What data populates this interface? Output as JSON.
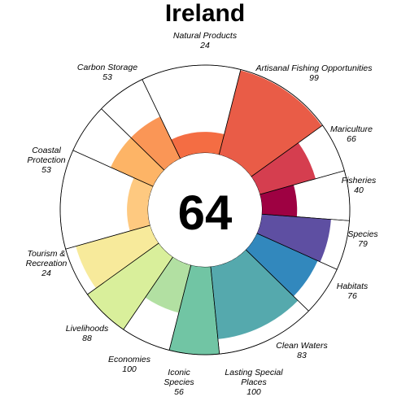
{
  "chart_data": {
    "type": "flower",
    "title": "Ireland",
    "center_score": "64",
    "max_value": 100,
    "petals": [
      {
        "name": "Natural Products",
        "value": 24,
        "weight": 1,
        "color": "#f46d43"
      },
      {
        "name": "Artisanal Fishing Opportunities",
        "value": 99,
        "weight": 1,
        "color": "#e95c47"
      },
      {
        "name": "Mariculture",
        "value": 66,
        "weight": 0.5,
        "color": "#d53e4f"
      },
      {
        "name": "Fisheries",
        "value": 40,
        "weight": 0.5,
        "color": "#9e0142"
      },
      {
        "name": "Species",
        "value": 79,
        "weight": 0.5,
        "color": "#5e4fa2"
      },
      {
        "name": "Habitats",
        "value": 76,
        "weight": 0.5,
        "color": "#3288bd"
      },
      {
        "name": "Clean Waters",
        "value": 83,
        "weight": 1,
        "color": "#55a9ad"
      },
      {
        "name": "Lasting Special Places",
        "value": 100,
        "weight": 0.5,
        "color": "#71c5a4"
      },
      {
        "name": "Iconic Species",
        "value": 56,
        "weight": 0.5,
        "color": "#b2e0a2"
      },
      {
        "name": "Economies",
        "value": 100,
        "weight": 0.5,
        "color": "#d9ef9b"
      },
      {
        "name": "Livelihoods",
        "value": 88,
        "weight": 0.5,
        "color": "#f7ea9b"
      },
      {
        "name": "Tourism & Recreation",
        "value": 24,
        "weight": 1,
        "color": "#fec980"
      },
      {
        "name": "Coastal Protection",
        "value": 53,
        "weight": 0.5,
        "color": "#fdb466"
      },
      {
        "name": "Carbon Storage",
        "value": 53,
        "weight": 0.5,
        "color": "#fa9656"
      }
    ]
  }
}
